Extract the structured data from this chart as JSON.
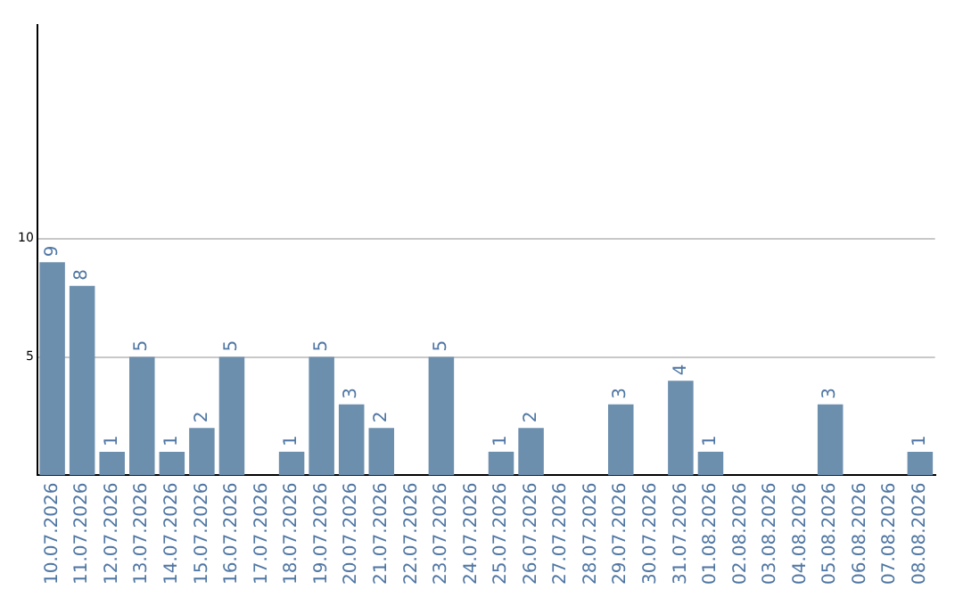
{
  "chart_data": {
    "type": "bar",
    "categories": [
      "10.07.2026",
      "11.07.2026",
      "12.07.2026",
      "13.07.2026",
      "14.07.2026",
      "15.07.2026",
      "16.07.2026",
      "17.07.2026",
      "18.07.2026",
      "19.07.2026",
      "20.07.2026",
      "21.07.2026",
      "22.07.2026",
      "23.07.2026",
      "24.07.2026",
      "25.07.2026",
      "26.07.2026",
      "27.07.2026",
      "28.07.2026",
      "29.07.2026",
      "30.07.2026",
      "31.07.2026",
      "01.08.2026",
      "02.08.2026",
      "03.08.2026",
      "04.08.2026",
      "05.08.2026",
      "06.08.2026",
      "07.08.2026",
      "08.08.2026"
    ],
    "values": [
      9,
      8,
      1,
      5,
      1,
      2,
      5,
      0,
      1,
      5,
      3,
      2,
      0,
      5,
      0,
      1,
      2,
      0,
      0,
      3,
      0,
      4,
      1,
      0,
      0,
      0,
      3,
      0,
      0,
      1
    ],
    "value_labels": [
      "9",
      "8",
      "1",
      "5",
      "1",
      "2",
      "5",
      null,
      "1",
      "5",
      "3",
      "2",
      null,
      "5",
      null,
      "1",
      "2",
      null,
      null,
      "3",
      null,
      "4",
      "1",
      null,
      null,
      null,
      "3",
      null,
      null,
      "1"
    ],
    "color": "#6d8fae",
    "ylim": [
      0,
      19
    ],
    "yticks": [
      5,
      10
    ],
    "grid": "y",
    "legend": false
  }
}
